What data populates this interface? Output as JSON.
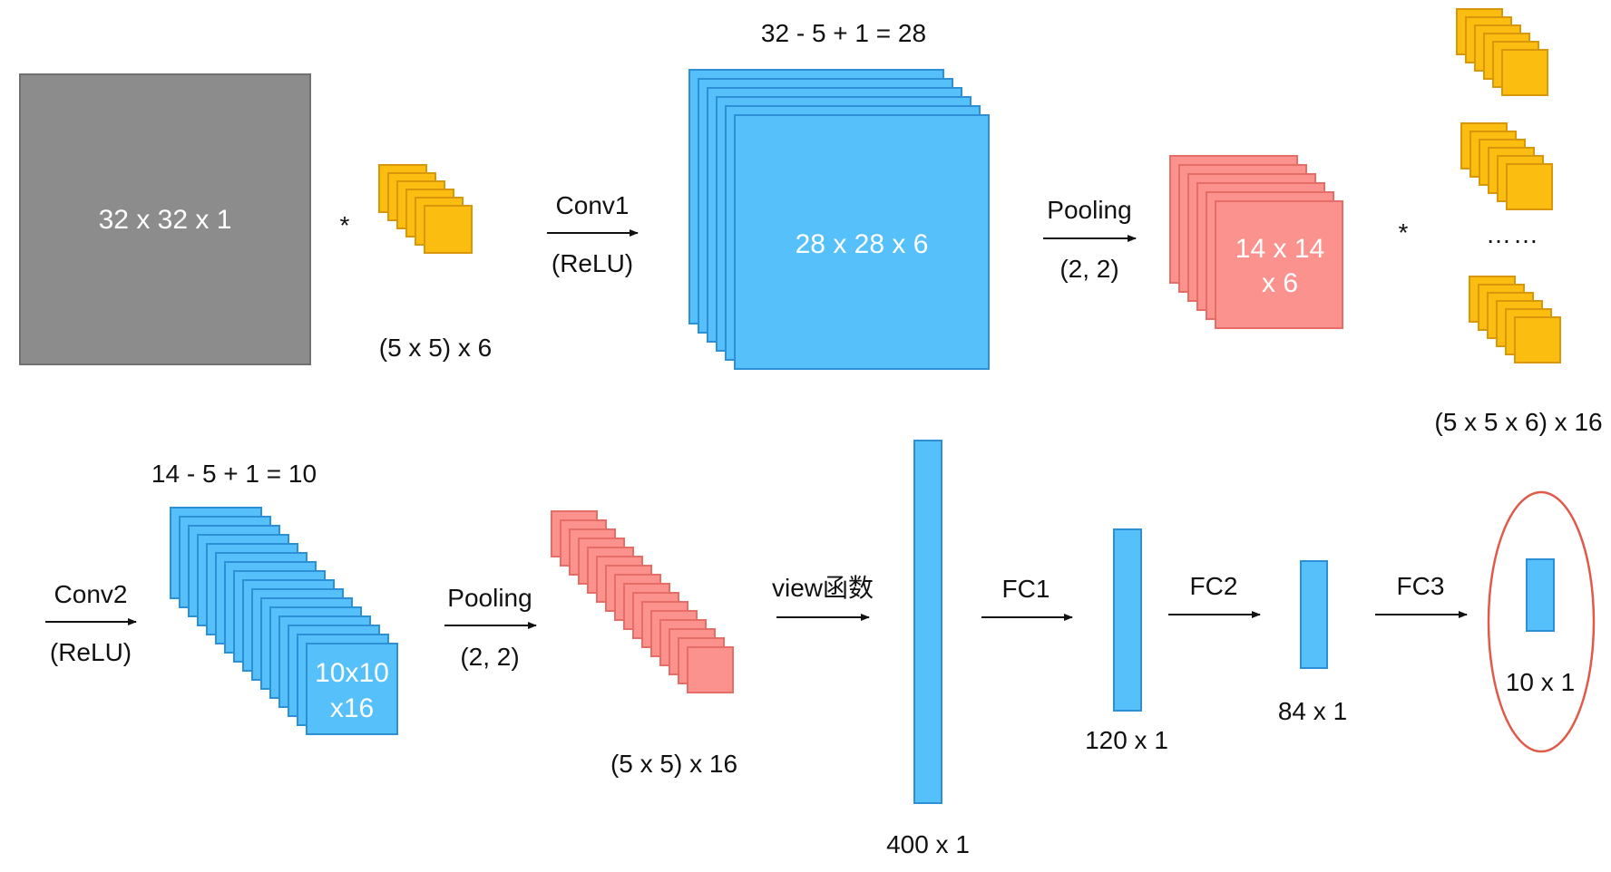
{
  "colors": {
    "input_gray": "#8c8c8c",
    "input_border": "#707070",
    "kernel_orange": "#fbbd10",
    "kernel_border": "#d8970a",
    "feature_blue": "#56c0fb",
    "feature_border": "#2d8fd6",
    "pool_red": "#fc928d",
    "pool_border": "#e56d66",
    "highlight_ring": "#e05a4a"
  },
  "top_row": {
    "input": {
      "label": "32 x 32 x 1"
    },
    "conv_op_symbol": "*",
    "kernel1": {
      "caption": "(5 x 5) x 6",
      "count": 6
    },
    "conv1": {
      "label": "Conv1",
      "sublabel": "(ReLU)"
    },
    "conv1_formula": "32 - 5 + 1 = 28",
    "feature1": {
      "label": "28 x 28 x 6",
      "count": 6
    },
    "pool1": {
      "label": "Pooling",
      "sublabel": "(2, 2)"
    },
    "pooled1": {
      "label_line1": "14 x 14",
      "label_line2": "x 6",
      "count": 6
    },
    "conv2_op_symbol": "*",
    "kernel_bank": {
      "dots": "……",
      "caption": "(5 x 5 x 6) x 16"
    }
  },
  "bottom_row": {
    "conv2": {
      "label": "Conv2",
      "sublabel": "(ReLU)"
    },
    "conv2_formula": "14 - 5 + 1 = 10",
    "feature2": {
      "label_line1": "10x10",
      "label_line2": "x16",
      "count": 16
    },
    "pool2": {
      "label": "Pooling",
      "sublabel": "(2, 2)"
    },
    "pooled2": {
      "caption": "(5 x 5) x 16",
      "count": 16
    },
    "view": {
      "label": "view函数"
    },
    "flat": {
      "caption": "400 x 1"
    },
    "fc1": {
      "label": "FC1"
    },
    "fc1_vec": {
      "caption": "120 x 1"
    },
    "fc2": {
      "label": "FC2"
    },
    "fc2_vec": {
      "caption": "84 x 1"
    },
    "fc3": {
      "label": "FC3"
    },
    "output": {
      "caption": "10 x 1"
    }
  }
}
